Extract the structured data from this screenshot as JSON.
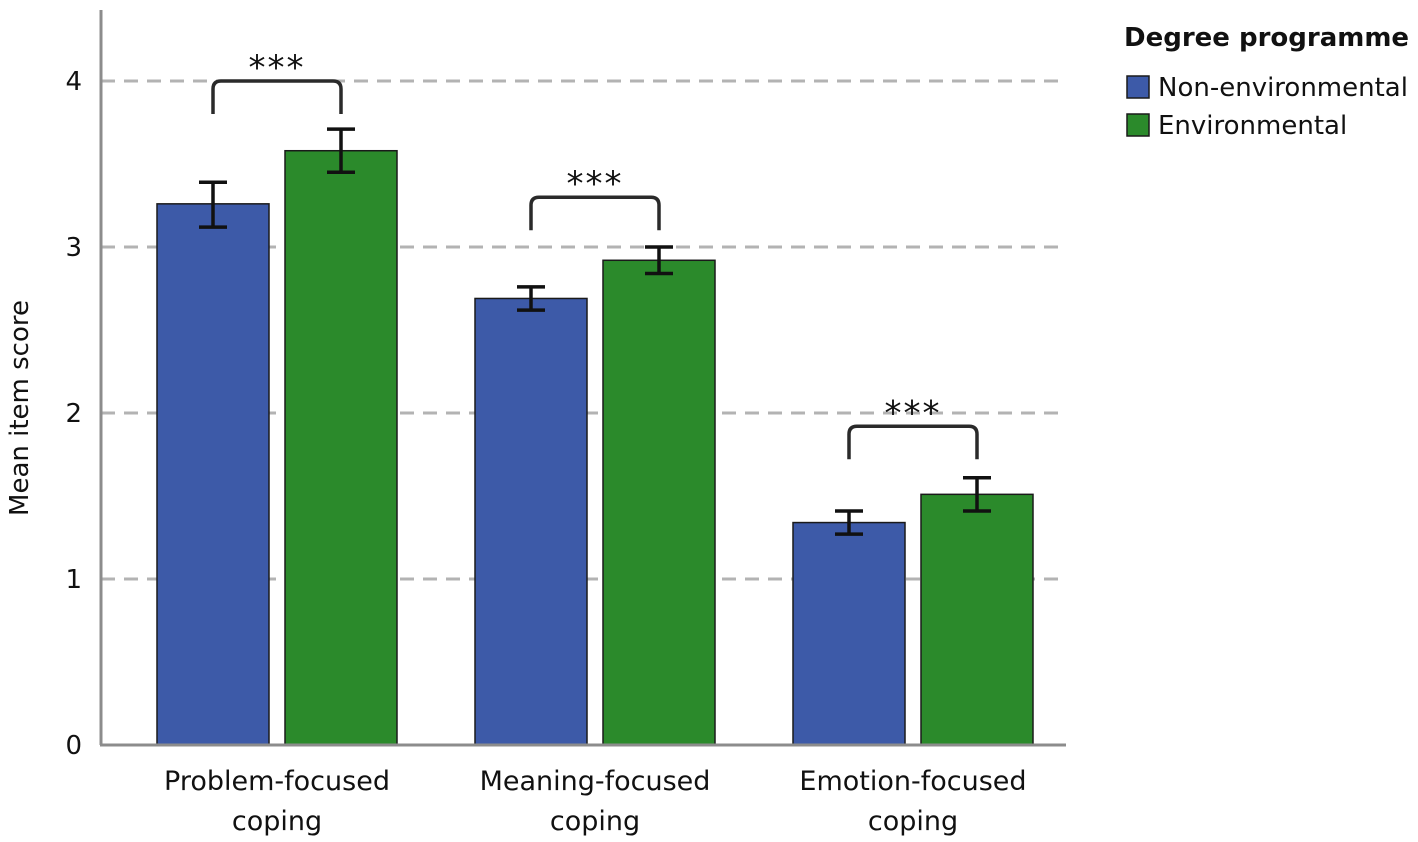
{
  "chart_data": {
    "type": "bar",
    "title": "",
    "xlabel": "",
    "ylabel": "Mean item score",
    "ylim": [
      0,
      4.4
    ],
    "yticks": [
      "0",
      "1",
      "2",
      "3",
      "4"
    ],
    "grid": "horizontal dashed",
    "categories": [
      [
        "Problem-focused",
        "coping"
      ],
      [
        "Meaning-focused",
        "coping"
      ],
      [
        "Emotion-focused",
        "coping"
      ]
    ],
    "series": [
      {
        "name": "Non-environmental",
        "color": "#3d5aa8",
        "values": [
          3.26,
          2.69,
          1.34
        ],
        "error_low": [
          3.12,
          2.62,
          1.27
        ],
        "error_high": [
          3.39,
          2.76,
          1.41
        ]
      },
      {
        "name": "Environmental",
        "color": "#2b8a2b",
        "values": [
          3.58,
          2.92,
          1.51
        ],
        "error_low": [
          3.45,
          2.84,
          1.41
        ],
        "error_high": [
          3.71,
          3.0,
          1.61
        ]
      }
    ],
    "significance": [
      {
        "category": 0,
        "label": "***",
        "bracket_y": 4.0
      },
      {
        "category": 1,
        "label": "***",
        "bracket_y": 3.3
      },
      {
        "category": 2,
        "label": "***",
        "bracket_y": 1.92
      }
    ],
    "legend": {
      "title": "Degree programme",
      "position": "top-right"
    }
  }
}
